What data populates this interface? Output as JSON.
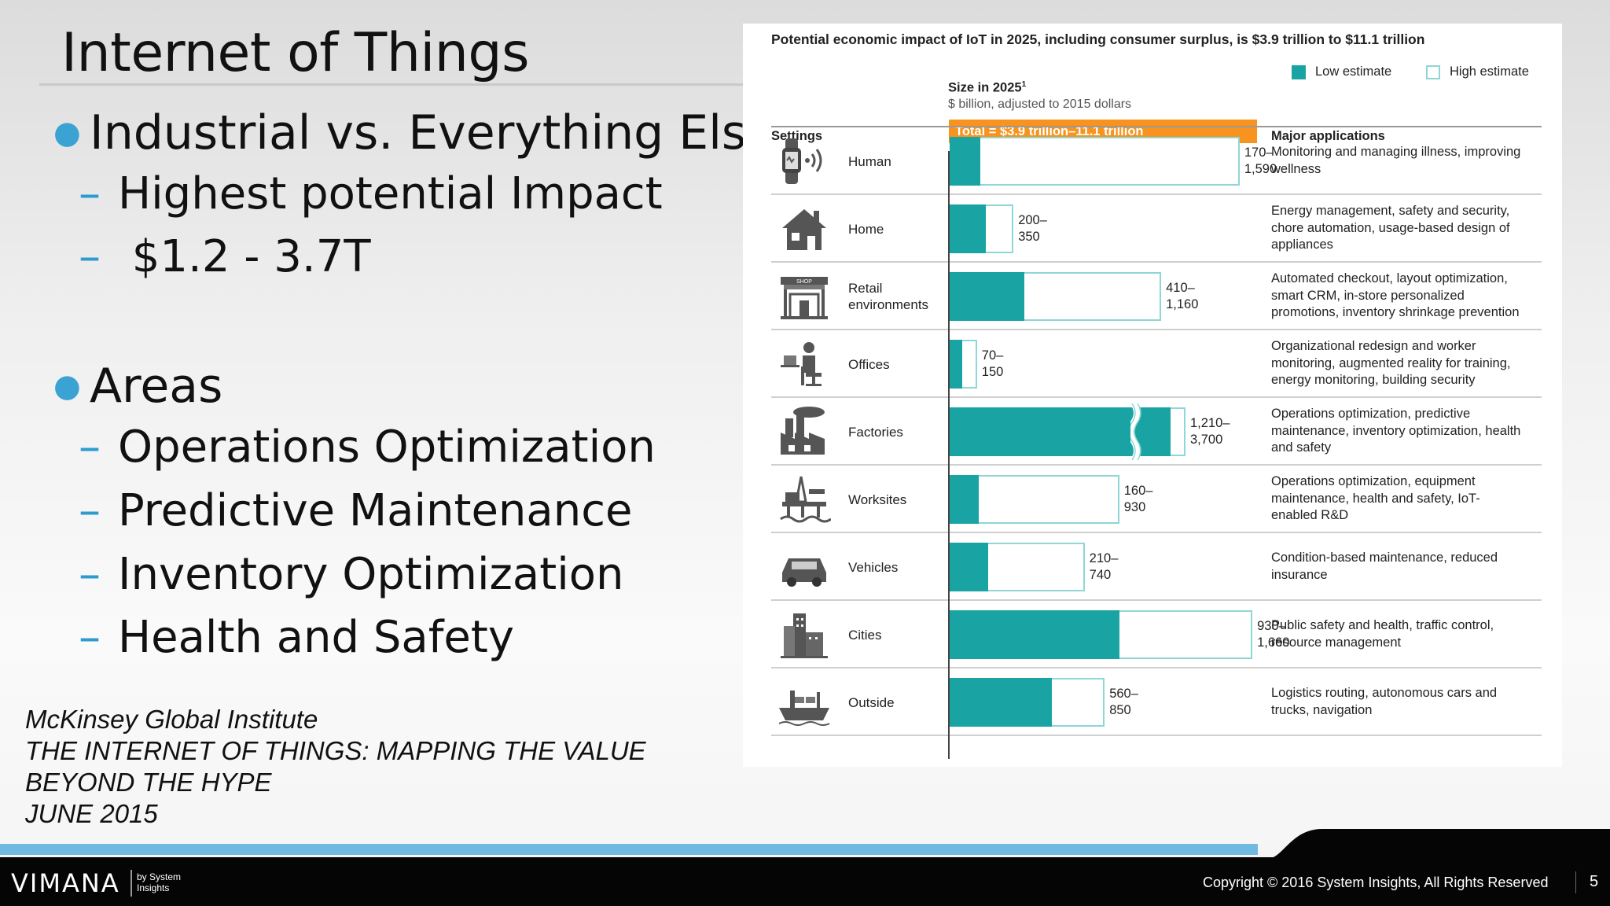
{
  "slide": {
    "title": "Internet of Things",
    "bullets": [
      {
        "text": "Industrial vs. Everything Else",
        "subs": [
          "Highest potential Impact",
          " $1.2 - 3.7T"
        ]
      },
      {
        "text": "Areas",
        "subs": [
          "Operations Optimization",
          "Predictive Maintenance",
          "Inventory Optimization",
          "Health and Safety"
        ]
      }
    ],
    "citation": [
      "McKinsey Global Institute",
      "THE INTERNET OF THINGS: MAPPING THE VALUE",
      "BEYOND THE HYPE",
      "JUNE 2015"
    ],
    "bullet_color": "#3aa3d3"
  },
  "chart_data": {
    "type": "bar",
    "title": "Potential economic impact of IoT in 2025, including consumer surplus, is $3.9 trillion to $11.1 trillion",
    "size_heading": "Size in 2025",
    "size_footnote": "1",
    "size_subheading": "$ billion, adjusted to 2015 dollars",
    "total_label": "Total = $3.9 trillion–11.1 trillion",
    "settings_header": "Settings",
    "applications_header": "Major applications",
    "legend": [
      {
        "name": "Low estimate",
        "color": "#1aa3a3"
      },
      {
        "name": "High estimate",
        "color": "#ffffff"
      }
    ],
    "categories": [
      "Human",
      "Home",
      "Retail environments",
      "Offices",
      "Factories",
      "Worksites",
      "Vehicles",
      "Cities",
      "Outside"
    ],
    "series": [
      {
        "name": "Low estimate",
        "values": [
          170,
          200,
          410,
          70,
          1210,
          160,
          210,
          930,
          560
        ]
      },
      {
        "name": "High estimate",
        "values": [
          1590,
          350,
          1160,
          150,
          3700,
          930,
          740,
          1660,
          850
        ]
      }
    ],
    "range_labels": [
      [
        "170–",
        "1,590"
      ],
      [
        "200–",
        "350"
      ],
      [
        "410–",
        "1,160"
      ],
      [
        "70–",
        "150"
      ],
      [
        "1,210–",
        "3,700"
      ],
      [
        "160–",
        "930"
      ],
      [
        "210–",
        "740"
      ],
      [
        "930–",
        "1,660"
      ],
      [
        "560–",
        "850"
      ]
    ],
    "axis_break_category": "Factories",
    "applications": [
      [
        "Monitoring and managing illness, improving",
        "wellness"
      ],
      [
        "Energy management, safety and security,",
        "chore automation, usage-based design of",
        "appliances"
      ],
      [
        "Automated checkout, layout optimization,",
        "smart CRM, in-store personalized",
        "promotions, inventory shrinkage prevention"
      ],
      [
        "Organizational redesign and worker",
        "monitoring, augmented reality for training,",
        "energy monitoring, building security"
      ],
      [
        "Operations optimization, predictive",
        "maintenance, inventory optimization, health",
        "and safety"
      ],
      [
        "Operations optimization, equipment",
        "maintenance, health and safety, IoT-",
        "enabled R&D"
      ],
      [
        "Condition-based maintenance, reduced",
        "insurance"
      ],
      [
        "Public safety and health, traffic control,",
        "resource management"
      ],
      [
        "Logistics routing, autonomous cars and",
        "trucks, navigation"
      ]
    ],
    "icons": [
      "smartwatch-icon",
      "house-icon",
      "shop-icon",
      "office-worker-icon",
      "factory-icon",
      "oil-rig-icon",
      "car-icon",
      "city-icon",
      "cargo-ship-icon"
    ],
    "bar_color_low": "#1aa3a3",
    "bar_color_high_border": "#8fd6d6",
    "total_color": "#f7931e"
  },
  "footer": {
    "logo": "VIMANA",
    "logo_sub": [
      "by System",
      "Insights"
    ],
    "copyright": "Copyright © 2016 System Insights, All Rights Reserved",
    "page": "5"
  }
}
